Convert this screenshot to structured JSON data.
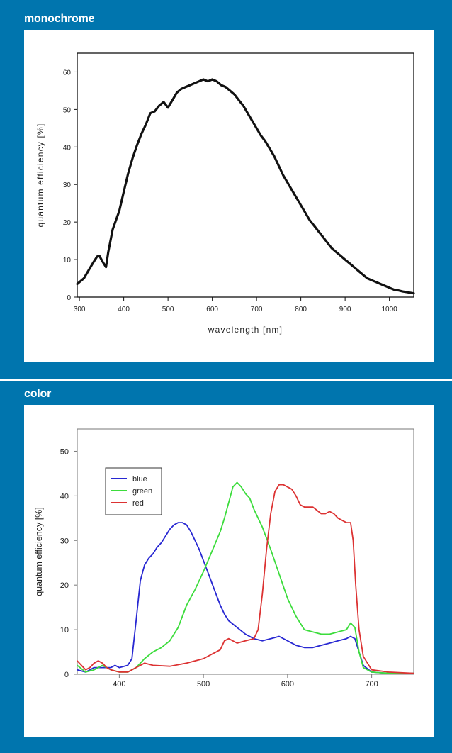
{
  "sections": [
    {
      "title": "monochrome"
    },
    {
      "title": "color"
    }
  ],
  "colors": {
    "background": "#0075ae",
    "panel": "#ffffff",
    "blue": "#2828d2",
    "green": "#3cdc3c",
    "red": "#dc3232",
    "mono": "#111111"
  },
  "chart_data": [
    {
      "type": "line",
      "title": "monochrome",
      "xlabel": "wavelength [nm]",
      "ylabel": "quantum efficiency [%]",
      "xlim": [
        295,
        1055
      ],
      "ylim": [
        0,
        65
      ],
      "xticks": [
        300,
        400,
        500,
        600,
        700,
        800,
        900,
        1000
      ],
      "yticks": [
        0,
        10,
        20,
        30,
        40,
        50,
        60
      ],
      "grid": false,
      "series": [
        {
          "x": [
            295,
            310,
            320,
            330,
            340,
            345,
            352,
            360,
            365,
            375,
            390,
            400,
            410,
            420,
            430,
            440,
            450,
            460,
            470,
            480,
            490,
            500,
            510,
            520,
            530,
            540,
            550,
            560,
            570,
            580,
            590,
            600,
            610,
            620,
            630,
            640,
            650,
            660,
            670,
            680,
            690,
            700,
            710,
            720,
            730,
            740,
            750,
            760,
            770,
            780,
            790,
            800,
            810,
            820,
            830,
            840,
            850,
            860,
            870,
            880,
            890,
            900,
            910,
            920,
            930,
            940,
            950,
            960,
            970,
            980,
            990,
            1000,
            1010,
            1020,
            1030,
            1040,
            1055
          ],
          "y": [
            3.5,
            5,
            7,
            9,
            10.8,
            11,
            9.5,
            8,
            12,
            18,
            23,
            28,
            33,
            37,
            40.5,
            43.5,
            46,
            49,
            49.5,
            51,
            52,
            50.5,
            52.5,
            54.5,
            55.5,
            56,
            56.5,
            57,
            57.5,
            58,
            57.5,
            58,
            57.5,
            56.5,
            56,
            55,
            54,
            52.5,
            51,
            49,
            47,
            45,
            43,
            41.5,
            39.5,
            37.5,
            35,
            32.5,
            30.5,
            28.5,
            26.5,
            24.5,
            22.5,
            20.5,
            19,
            17.5,
            16,
            14.5,
            13,
            12,
            11,
            10,
            9,
            8,
            7,
            6,
            5,
            4.5,
            4,
            3.5,
            3,
            2.5,
            2,
            1.8,
            1.5,
            1.3,
            1
          ]
        }
      ]
    },
    {
      "type": "line",
      "title": "color",
      "xlabel": "",
      "ylabel": "quantum efficiency [%]",
      "xlim": [
        350,
        750
      ],
      "ylim": [
        0,
        55
      ],
      "xticks": [
        400,
        500,
        600,
        700
      ],
      "yticks": [
        0,
        10,
        20,
        30,
        40,
        50
      ],
      "grid": false,
      "legend": "top-left",
      "series": [
        {
          "name": "blue",
          "color": "#2828d2",
          "x": [
            350,
            360,
            370,
            380,
            390,
            395,
            400,
            410,
            415,
            420,
            425,
            430,
            435,
            440,
            445,
            450,
            455,
            460,
            465,
            470,
            475,
            480,
            485,
            490,
            495,
            500,
            505,
            510,
            515,
            520,
            525,
            530,
            540,
            550,
            560,
            570,
            580,
            590,
            600,
            610,
            620,
            630,
            640,
            650,
            660,
            670,
            675,
            680,
            685,
            690,
            700,
            720,
            750
          ],
          "y": [
            1,
            0.5,
            1.5,
            1.5,
            1.5,
            2,
            1.5,
            2,
            3.5,
            12,
            21,
            24.5,
            26,
            27,
            28.5,
            29.5,
            31,
            32.5,
            33.5,
            34,
            34,
            33.5,
            32,
            30,
            28,
            25.5,
            23,
            20.5,
            18,
            15.5,
            13.5,
            12,
            10.5,
            9,
            8,
            7.5,
            8,
            8.5,
            7.5,
            6.5,
            6,
            6,
            6.5,
            7,
            7.5,
            8,
            8.5,
            8,
            5,
            2,
            0.5,
            0.2,
            0.2
          ]
        },
        {
          "name": "green",
          "color": "#3cdc3c",
          "x": [
            350,
            360,
            370,
            380,
            390,
            400,
            410,
            420,
            430,
            440,
            450,
            460,
            470,
            480,
            490,
            500,
            510,
            520,
            525,
            530,
            535,
            540,
            545,
            550,
            555,
            560,
            570,
            580,
            590,
            600,
            610,
            620,
            630,
            640,
            650,
            660,
            670,
            675,
            680,
            685,
            690,
            700,
            720,
            750
          ],
          "y": [
            2,
            0.5,
            1,
            2,
            1,
            0.5,
            0.5,
            1.5,
            3.5,
            5,
            6,
            7.5,
            10.5,
            15.5,
            19,
            23,
            27.5,
            32,
            35,
            38.5,
            42,
            43,
            42,
            40.5,
            39.5,
            37,
            33,
            28,
            22.5,
            17,
            13,
            10,
            9.5,
            9,
            9,
            9.5,
            10,
            11.5,
            10.5,
            5,
            1.5,
            0.5,
            0.2,
            0.2
          ]
        },
        {
          "name": "red",
          "color": "#dc3232",
          "x": [
            350,
            355,
            360,
            365,
            370,
            375,
            380,
            385,
            390,
            400,
            410,
            420,
            430,
            440,
            460,
            480,
            500,
            510,
            520,
            525,
            530,
            540,
            550,
            560,
            565,
            570,
            575,
            580,
            585,
            590,
            595,
            600,
            605,
            610,
            615,
            620,
            630,
            640,
            645,
            650,
            655,
            660,
            670,
            675,
            678,
            681,
            685,
            690,
            700,
            720,
            750
          ],
          "y": [
            3,
            2,
            1,
            1.5,
            2.5,
            3,
            2.5,
            1.5,
            1,
            0.5,
            0.5,
            1.5,
            2.5,
            2,
            1.8,
            2.5,
            3.5,
            4.5,
            5.5,
            7.5,
            8,
            7,
            7.5,
            8,
            10,
            18,
            28,
            36,
            41,
            42.5,
            42.5,
            42,
            41.5,
            40,
            38,
            37.5,
            37.5,
            36,
            36,
            36.5,
            36,
            35,
            34,
            34,
            30,
            20,
            10,
            4,
            1,
            0.5,
            0.2
          ]
        }
      ]
    }
  ]
}
